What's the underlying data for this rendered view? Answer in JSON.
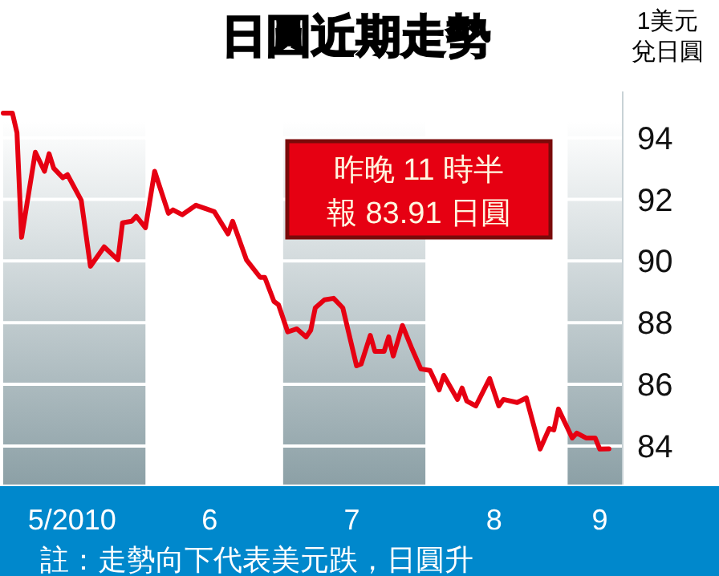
{
  "chart_data": {
    "type": "line",
    "title": "日圓近期走勢",
    "ylabel": "1美元兌日圓",
    "annotations": [
      "昨晚 11 時半",
      "報 83.91 日圓",
      "註：走勢向下代表美元跌，日圓升"
    ],
    "x": [
      "2010-05-01",
      "2010-05-03",
      "2010-05-04",
      "2010-05-05",
      "2010-05-08",
      "2010-05-10",
      "2010-05-11",
      "2010-05-12",
      "2010-05-14",
      "2010-05-15",
      "2010-05-18",
      "2010-05-20",
      "2010-05-23",
      "2010-05-26",
      "2010-05-27",
      "2010-05-29",
      "2010-05-30",
      "2010-06-01",
      "2010-06-03",
      "2010-06-06",
      "2010-06-07",
      "2010-06-09",
      "2010-06-12",
      "2010-06-16",
      "2010-06-19",
      "2010-06-20",
      "2010-06-23",
      "2010-06-26",
      "2010-06-27",
      "2010-06-29",
      "2010-06-30",
      "2010-07-02",
      "2010-07-04",
      "2010-07-06",
      "2010-07-07",
      "2010-07-08",
      "2010-07-10",
      "2010-07-12",
      "2010-07-14",
      "2010-07-17",
      "2010-07-18",
      "2010-07-20",
      "2010-07-21",
      "2010-07-23",
      "2010-07-24",
      "2010-07-25",
      "2010-07-27",
      "2010-07-29",
      "2010-07-31",
      "2010-08-02",
      "2010-08-04",
      "2010-08-05",
      "2010-08-08",
      "2010-08-09",
      "2010-08-10",
      "2010-08-12",
      "2010-08-15",
      "2010-08-17",
      "2010-08-18",
      "2010-08-21",
      "2010-08-23",
      "2010-08-26",
      "2010-08-28",
      "2010-08-29",
      "2010-08-30",
      "2010-09-02",
      "2010-09-03",
      "2010-09-05",
      "2010-09-07",
      "2010-09-08",
      "2010-09-10"
    ],
    "series": [
      {
        "color": "#e60012",
        "values": [
          94.8,
          94.8,
          94.16,
          90.77,
          93.53,
          92.91,
          93.48,
          93.01,
          92.7,
          92.8,
          91.97,
          89.83,
          90.46,
          90.04,
          91.24,
          91.29,
          91.45,
          91.08,
          92.91,
          91.55,
          91.66,
          91.5,
          91.81,
          91.6,
          90.88,
          91.29,
          90.04,
          89.47,
          89.47,
          88.69,
          88.58,
          87.7,
          87.8,
          87.54,
          87.75,
          88.48,
          88.74,
          88.79,
          88.48,
          86.6,
          86.66,
          87.59,
          87.07,
          87.07,
          87.54,
          86.92,
          87.91,
          87.18,
          86.5,
          86.45,
          85.82,
          86.29,
          85.51,
          85.88,
          85.46,
          85.3,
          86.19,
          85.3,
          85.51,
          85.41,
          85.56,
          83.9,
          84.57,
          84.52,
          85.2,
          84.26,
          84.42,
          84.26,
          84.26,
          83.9,
          83.91
        ]
      }
    ],
    "xlim": [
      "2010-05-01",
      "2010-09-13"
    ],
    "xticks": [
      {
        "value": "2010-05-16",
        "label": "5/2010"
      },
      {
        "value": "2010-06-15",
        "label": "6"
      },
      {
        "value": "2010-07-16",
        "label": "7"
      },
      {
        "value": "2010-08-16",
        "label": "8"
      },
      {
        "value": "2010-09-08",
        "label": "9"
      }
    ],
    "ylim": [
      82.75,
      95.5
    ],
    "yticks": [
      84,
      86,
      88,
      90,
      92,
      94
    ],
    "bands": [
      {
        "axis": "x",
        "from": "2010-05-01",
        "to": "2010-06-01",
        "color": "#8ca0a6"
      },
      {
        "axis": "x",
        "from": "2010-07-01",
        "to": "2010-08-01",
        "color": "#8ca0a6"
      },
      {
        "axis": "x",
        "from": "2010-09-01",
        "to": "2010-09-13",
        "color": "#8ca0a6"
      }
    ],
    "grid": "y",
    "marker": "none",
    "line_style": "solid"
  }
}
